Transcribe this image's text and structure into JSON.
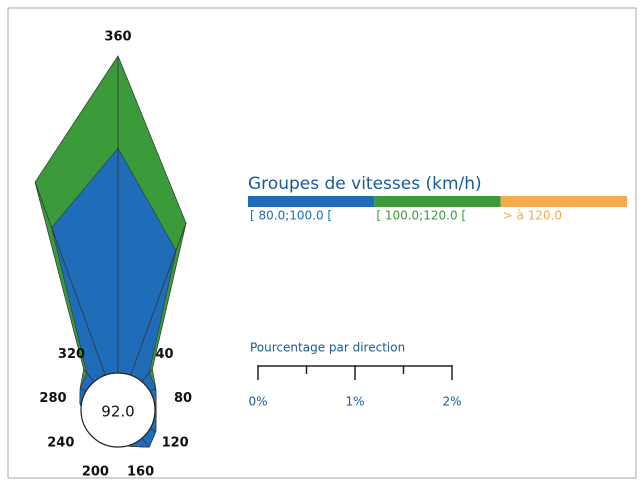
{
  "chart_data": {
    "type": "rose",
    "legend_title": "Groupes de vitesses (km/h)",
    "categories": [
      "360",
      null,
      "40",
      null,
      "80",
      null,
      "120",
      null,
      "160",
      null,
      "200",
      null,
      "240",
      null,
      "280",
      null,
      "320",
      null
    ],
    "series": [
      {
        "name": "[ 80.0;100.0 [",
        "color": "#1f6cb9",
        "values": [
          2.7,
          1.75,
          0.5,
          0.45,
          0.4,
          0.4,
          0.45,
          0.5,
          0.4,
          0.35,
          0.35,
          0.35,
          0.35,
          0.35,
          0.4,
          0.45,
          0.5,
          2.0
        ]
      },
      {
        "name": "[ 100.0;120.0 [",
        "color": "#3b9b3b",
        "values": [
          0.95,
          0.3,
          0.05,
          0,
          0,
          0,
          0,
          0,
          0,
          0,
          0,
          0,
          0,
          0,
          0,
          0,
          0.05,
          0.5
        ]
      },
      {
        "name": "> à 120.0",
        "color": "#f5aa4c",
        "values": [
          0,
          0,
          0,
          0,
          0,
          0,
          0,
          0,
          0,
          0,
          0,
          0,
          0,
          0,
          0,
          0,
          0,
          0
        ]
      }
    ],
    "center_label": "92.0",
    "scale_title": "Pourcentage par direction",
    "scale_lim": [
      0,
      2
    ],
    "scale_ticks": [
      {
        "value": 0,
        "label": "0%"
      },
      {
        "value": 1,
        "label": "1%"
      },
      {
        "value": 2,
        "label": "2%"
      }
    ],
    "scale_minor_ticks": [
      0.5,
      1.5
    ]
  }
}
